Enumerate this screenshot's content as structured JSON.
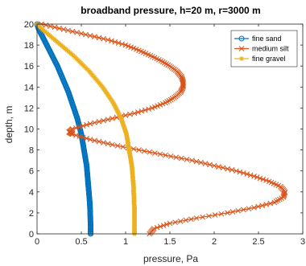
{
  "chart_data": {
    "type": "line",
    "title": "broadband pressure, h=20 m, r=3000 m",
    "xlabel": "pressure, Pa",
    "ylabel": "depth, m",
    "xlim": [
      0,
      3
    ],
    "ylim": [
      0,
      20
    ],
    "xticks": [
      0,
      0.5,
      1,
      1.5,
      2,
      2.5,
      3
    ],
    "xtick_labels": [
      "0",
      "0.5",
      "1",
      "1.5",
      "2",
      "2.5",
      "3"
    ],
    "yticks": [
      0,
      2,
      4,
      6,
      8,
      10,
      12,
      14,
      16,
      18,
      20
    ],
    "ytick_labels": [
      "0",
      "2",
      "4",
      "6",
      "8",
      "10",
      "12",
      "14",
      "16",
      "18",
      "20"
    ],
    "grid": false,
    "legend_position": "top-right",
    "series": [
      {
        "name": "fine sand",
        "color": "#0072BD",
        "marker": "circle",
        "points": [
          [
            0.0,
            20
          ],
          [
            0.02,
            19.5
          ],
          [
            0.05,
            19
          ],
          [
            0.08,
            18.5
          ],
          [
            0.11,
            18
          ],
          [
            0.14,
            17.5
          ],
          [
            0.17,
            17
          ],
          [
            0.2,
            16.5
          ],
          [
            0.23,
            16
          ],
          [
            0.255,
            15.5
          ],
          [
            0.28,
            15
          ],
          [
            0.305,
            14.5
          ],
          [
            0.33,
            14
          ],
          [
            0.355,
            13.5
          ],
          [
            0.375,
            13
          ],
          [
            0.395,
            12.5
          ],
          [
            0.415,
            12
          ],
          [
            0.435,
            11.5
          ],
          [
            0.455,
            11
          ],
          [
            0.47,
            10.5
          ],
          [
            0.485,
            10
          ],
          [
            0.5,
            9.5
          ],
          [
            0.51,
            9
          ],
          [
            0.52,
            8.5
          ],
          [
            0.53,
            8
          ],
          [
            0.54,
            7.5
          ],
          [
            0.55,
            7
          ],
          [
            0.56,
            6.5
          ],
          [
            0.565,
            6
          ],
          [
            0.57,
            5.5
          ],
          [
            0.575,
            5
          ],
          [
            0.58,
            4.5
          ],
          [
            0.585,
            4
          ],
          [
            0.59,
            3.5
          ],
          [
            0.595,
            3
          ],
          [
            0.598,
            2.5
          ],
          [
            0.6,
            2
          ],
          [
            0.602,
            1.5
          ],
          [
            0.604,
            1
          ],
          [
            0.605,
            0.5
          ],
          [
            0.605,
            0
          ]
        ]
      },
      {
        "name": "medium silt",
        "color": "#D95319",
        "marker": "x",
        "points": [
          [
            0.05,
            20
          ],
          [
            0.3,
            19.5
          ],
          [
            0.55,
            19
          ],
          [
            0.8,
            18.5
          ],
          [
            1.0,
            18
          ],
          [
            1.15,
            17.5
          ],
          [
            1.28,
            17
          ],
          [
            1.4,
            16.5
          ],
          [
            1.5,
            16
          ],
          [
            1.58,
            15.5
          ],
          [
            1.63,
            15
          ],
          [
            1.65,
            14.5
          ],
          [
            1.65,
            14
          ],
          [
            1.62,
            13.5
          ],
          [
            1.55,
            13
          ],
          [
            1.45,
            12.5
          ],
          [
            1.3,
            12
          ],
          [
            1.1,
            11.5
          ],
          [
            0.85,
            11
          ],
          [
            0.6,
            10.5
          ],
          [
            0.4,
            10
          ],
          [
            0.36,
            9.7
          ],
          [
            0.4,
            9.5
          ],
          [
            0.6,
            9
          ],
          [
            0.85,
            8.5
          ],
          [
            1.15,
            8
          ],
          [
            1.45,
            7.5
          ],
          [
            1.75,
            7
          ],
          [
            2.0,
            6.5
          ],
          [
            2.25,
            6
          ],
          [
            2.45,
            5.5
          ],
          [
            2.62,
            5
          ],
          [
            2.75,
            4.5
          ],
          [
            2.8,
            4
          ],
          [
            2.78,
            3.5
          ],
          [
            2.68,
            3
          ],
          [
            2.45,
            2.5
          ],
          [
            2.15,
            2
          ],
          [
            1.8,
            1.5
          ],
          [
            1.5,
            1
          ],
          [
            1.32,
            0.5
          ],
          [
            1.27,
            0
          ]
        ]
      },
      {
        "name": "fine gravel",
        "color": "#EDB120",
        "marker": "star",
        "points": [
          [
            0.0,
            20
          ],
          [
            0.06,
            19.5
          ],
          [
            0.13,
            19
          ],
          [
            0.2,
            18.5
          ],
          [
            0.27,
            18
          ],
          [
            0.34,
            17.5
          ],
          [
            0.41,
            17
          ],
          [
            0.47,
            16.5
          ],
          [
            0.53,
            16
          ],
          [
            0.59,
            15.5
          ],
          [
            0.64,
            15
          ],
          [
            0.69,
            14.5
          ],
          [
            0.74,
            14
          ],
          [
            0.78,
            13.5
          ],
          [
            0.82,
            13
          ],
          [
            0.86,
            12.5
          ],
          [
            0.89,
            12
          ],
          [
            0.92,
            11.5
          ],
          [
            0.95,
            11
          ],
          [
            0.97,
            10.5
          ],
          [
            0.99,
            10
          ],
          [
            1.01,
            9.5
          ],
          [
            1.02,
            9
          ],
          [
            1.03,
            8.5
          ],
          [
            1.04,
            8
          ],
          [
            1.05,
            7.5
          ],
          [
            1.06,
            7
          ],
          [
            1.07,
            6.5
          ],
          [
            1.075,
            6
          ],
          [
            1.08,
            5.5
          ],
          [
            1.085,
            5
          ],
          [
            1.09,
            4.5
          ],
          [
            1.09,
            4
          ],
          [
            1.095,
            3.5
          ],
          [
            1.095,
            3
          ],
          [
            1.1,
            2.5
          ],
          [
            1.1,
            2
          ],
          [
            1.1,
            1.5
          ],
          [
            1.1,
            1
          ],
          [
            1.1,
            0.5
          ],
          [
            1.1,
            0
          ]
        ]
      }
    ]
  }
}
